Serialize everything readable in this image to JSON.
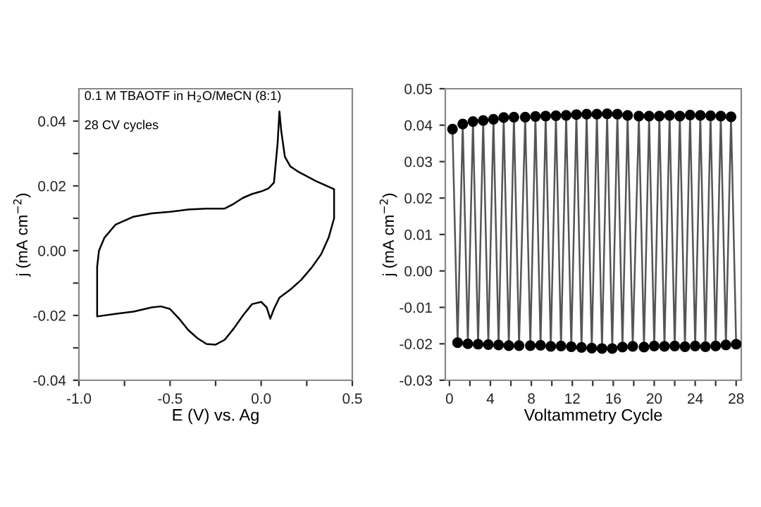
{
  "chart_data": [
    {
      "type": "line",
      "xlabel": "E (V) vs. Ag",
      "ylabel": "j (mA cm$^{−2}$)",
      "xlim": [
        -1.0,
        0.5
      ],
      "ylim": [
        -0.04,
        0.05
      ],
      "xticks": [
        {
          "value": -1.0,
          "label": "-1.0"
        },
        {
          "value": -0.75,
          "label": null
        },
        {
          "value": -0.5,
          "label": "-0.5"
        },
        {
          "value": -0.25,
          "label": null
        },
        {
          "value": 0.0,
          "label": "0.0"
        },
        {
          "value": 0.25,
          "label": null
        },
        {
          "value": 0.5,
          "label": "0.5"
        }
      ],
      "yticks": [
        {
          "value": -0.04,
          "label": "-0.04"
        },
        {
          "value": -0.03,
          "label": null
        },
        {
          "value": -0.02,
          "label": "-0.02"
        },
        {
          "value": -0.01,
          "label": null
        },
        {
          "value": 0.0,
          "label": "0.00"
        },
        {
          "value": 0.01,
          "label": null
        },
        {
          "value": 0.02,
          "label": "0.02"
        },
        {
          "value": 0.03,
          "label": null
        },
        {
          "value": 0.04,
          "label": "0.04"
        }
      ],
      "annotations": [
        "0.1 M TBAOTF in H$_{2}$O/MeCN (8:1)",
        "28 CV cycles"
      ],
      "grid": false,
      "legend": false,
      "series": [
        {
          "color": "#000000",
          "x": [
            -0.9,
            -0.9,
            -0.89,
            -0.86,
            -0.8,
            -0.7,
            -0.6,
            -0.5,
            -0.4,
            -0.3,
            -0.2,
            -0.15,
            -0.1,
            -0.05,
            0.0,
            0.04,
            0.07,
            0.09,
            0.1,
            0.11,
            0.13,
            0.16,
            0.2,
            0.3,
            0.4,
            0.4,
            0.37,
            0.33,
            0.28,
            0.22,
            0.16,
            0.1,
            0.07,
            0.05,
            0.03,
            0.0,
            -0.05,
            -0.1,
            -0.15,
            -0.2,
            -0.25,
            -0.3,
            -0.35,
            -0.4,
            -0.45,
            -0.5,
            -0.55,
            -0.6,
            -0.7,
            -0.8,
            -0.9
          ],
          "values": [
            -0.02,
            -0.005,
            0.0,
            0.004,
            0.008,
            0.0105,
            0.0115,
            0.012,
            0.0127,
            0.013,
            0.013,
            0.0145,
            0.0163,
            0.0175,
            0.0183,
            0.0192,
            0.021,
            0.033,
            0.043,
            0.037,
            0.029,
            0.026,
            0.0245,
            0.0215,
            0.019,
            0.01,
            0.004,
            -0.001,
            -0.005,
            -0.009,
            -0.012,
            -0.0145,
            -0.018,
            -0.021,
            -0.0175,
            -0.0158,
            -0.0165,
            -0.02,
            -0.024,
            -0.0275,
            -0.029,
            -0.0288,
            -0.027,
            -0.0245,
            -0.021,
            -0.018,
            -0.0172,
            -0.0175,
            -0.0188,
            -0.0195,
            -0.0203
          ]
        }
      ]
    },
    {
      "type": "line",
      "xlabel": "Voltammetry Cycle",
      "ylabel": "j (mA cm$^{−2}$)",
      "xlim": [
        -0.4,
        28.5
      ],
      "ylim": [
        -0.03,
        0.05
      ],
      "xticks": [
        0,
        {
          "value": 2,
          "label": null
        },
        4,
        {
          "value": 6,
          "label": null
        },
        8,
        {
          "value": 10,
          "label": null
        },
        12,
        {
          "value": 14,
          "label": null
        },
        16,
        {
          "value": 18,
          "label": null
        },
        20,
        {
          "value": 22,
          "label": null
        },
        24,
        {
          "value": 26,
          "label": null
        },
        28
      ],
      "yticks": [
        {
          "value": -0.03,
          "label": "-0.03"
        },
        {
          "value": -0.02,
          "label": "-0.02"
        },
        {
          "value": -0.01,
          "label": "-0.01"
        },
        {
          "value": 0.0,
          "label": "0.00"
        },
        {
          "value": 0.01,
          "label": "0.01"
        },
        {
          "value": 0.02,
          "label": "0.02"
        },
        {
          "value": 0.03,
          "label": "0.03"
        },
        {
          "value": 0.04,
          "label": "0.04"
        },
        {
          "value": 0.05,
          "label": "0.05"
        }
      ],
      "grid": false,
      "legend": false,
      "series": [
        {
          "color": "#555555",
          "x": [
            0.3,
            0.8,
            1.3,
            1.8,
            2.3,
            2.8,
            3.3,
            3.8,
            4.3,
            4.8,
            5.3,
            5.8,
            6.3,
            6.8,
            7.4,
            7.9,
            8.4,
            8.9,
            9.4,
            9.9,
            10.4,
            10.9,
            11.4,
            11.9,
            12.4,
            12.9,
            13.4,
            13.9,
            14.4,
            14.9,
            15.4,
            15.9,
            16.4,
            16.9,
            17.4,
            17.9,
            18.5,
            19.0,
            19.5,
            20.0,
            20.5,
            21.0,
            21.5,
            22.0,
            22.5,
            23.0,
            23.5,
            24.0,
            24.5,
            25.0,
            25.5,
            26.0,
            26.5,
            27.0,
            27.5,
            28.0
          ],
          "values": [
            0.0389,
            -0.0197,
            0.0403,
            -0.02,
            0.041,
            -0.0201,
            0.0413,
            -0.0202,
            0.0416,
            -0.0203,
            0.0421,
            -0.0205,
            0.0422,
            -0.0205,
            0.0422,
            -0.0205,
            0.0424,
            -0.0204,
            0.0425,
            -0.0207,
            0.0426,
            -0.0206,
            0.0427,
            -0.0208,
            0.0429,
            -0.021,
            0.043,
            -0.0212,
            0.043,
            -0.0213,
            0.0431,
            -0.0213,
            0.043,
            -0.0209,
            0.0427,
            -0.0207,
            0.0425,
            -0.0209,
            0.0425,
            -0.0206,
            0.0425,
            -0.0207,
            0.0427,
            -0.0206,
            0.0425,
            -0.0208,
            0.0428,
            -0.0206,
            0.0427,
            -0.0208,
            0.0426,
            -0.0206,
            0.0425,
            -0.0203,
            0.0423,
            -0.0201
          ]
        },
        {
          "type": "scatter",
          "color": "#000000",
          "marker": "circle",
          "x": [
            0.3,
            1.3,
            2.3,
            3.3,
            4.3,
            5.3,
            6.3,
            7.4,
            8.4,
            9.4,
            10.4,
            11.4,
            12.4,
            13.4,
            14.4,
            15.4,
            16.4,
            17.4,
            18.5,
            19.5,
            20.5,
            21.5,
            22.5,
            23.5,
            24.5,
            25.5,
            26.5,
            27.5
          ],
          "values": [
            0.0389,
            0.0403,
            0.041,
            0.0413,
            0.0416,
            0.0421,
            0.0422,
            0.0422,
            0.0424,
            0.0425,
            0.0426,
            0.0427,
            0.0429,
            0.043,
            0.043,
            0.0431,
            0.043,
            0.0427,
            0.0425,
            0.0425,
            0.0425,
            0.0427,
            0.0425,
            0.0428,
            0.0427,
            0.0426,
            0.0425,
            0.0423
          ]
        },
        {
          "type": "scatter",
          "color": "#000000",
          "marker": "circle",
          "x": [
            0.8,
            1.8,
            2.8,
            3.8,
            4.8,
            5.8,
            6.8,
            7.9,
            8.9,
            9.9,
            10.9,
            11.9,
            12.9,
            13.9,
            14.9,
            15.9,
            16.9,
            17.9,
            19.0,
            20.0,
            21.0,
            22.0,
            23.0,
            24.0,
            25.0,
            26.0,
            27.0,
            28.0
          ],
          "values": [
            -0.0197,
            -0.02,
            -0.0201,
            -0.0202,
            -0.0203,
            -0.0205,
            -0.0205,
            -0.0205,
            -0.0204,
            -0.0207,
            -0.0206,
            -0.0208,
            -0.021,
            -0.0212,
            -0.0213,
            -0.0213,
            -0.0209,
            -0.0207,
            -0.0209,
            -0.0206,
            -0.0207,
            -0.0206,
            -0.0208,
            -0.0206,
            -0.0208,
            -0.0206,
            -0.0203,
            -0.0201
          ]
        }
      ]
    }
  ]
}
